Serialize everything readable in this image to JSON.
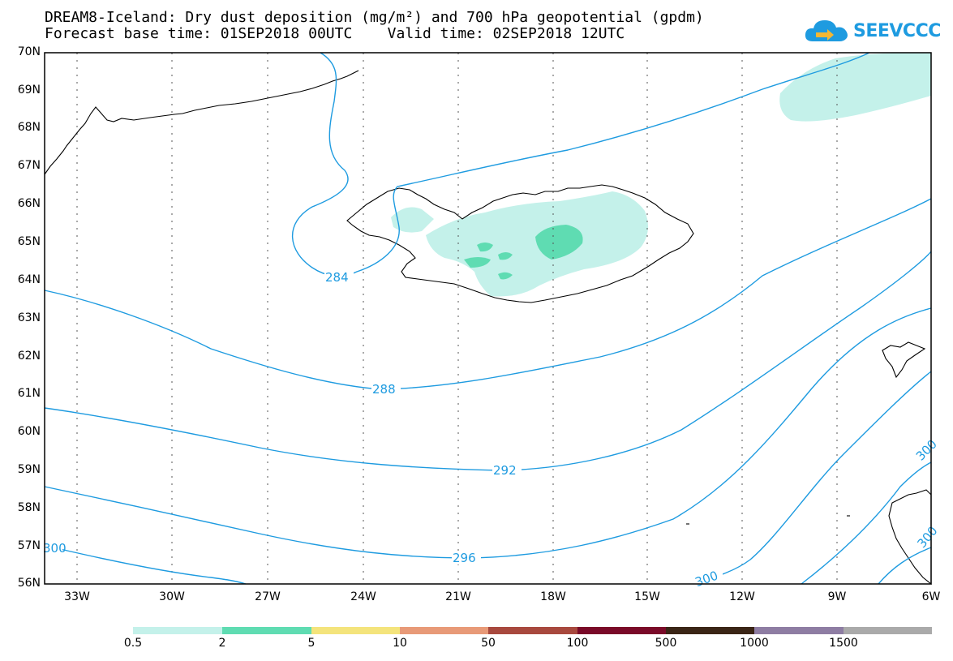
{
  "header": {
    "line1": "DREAM8-Iceland: Dry dust deposition (mg/m²) and 700 hPa geopotential (gpdm)",
    "line2": "Forecast base time: 01SEP2018 00UTC    Valid time: 02SEP2018 12UTC"
  },
  "logo": {
    "text": "SEEVCCC",
    "icon": "cloud-arrow-icon",
    "color": "#1e9be0"
  },
  "map": {
    "lat_labels": [
      "70N",
      "69N",
      "68N",
      "67N",
      "66N",
      "65N",
      "64N",
      "63N",
      "62N",
      "61N",
      "60N",
      "59N",
      "58N",
      "57N",
      "56N"
    ],
    "lon_labels": [
      "33W",
      "30W",
      "27W",
      "24W",
      "21W",
      "18W",
      "15W",
      "12W",
      "9W",
      "6W"
    ],
    "contour_labels": [
      "284",
      "288",
      "292",
      "296",
      "300",
      "300",
      "300",
      "300"
    ],
    "contour_color": "#1e9be0",
    "coast_color": "#000000"
  },
  "legend": {
    "labels": [
      "0.5",
      "2",
      "5",
      "10",
      "50",
      "100",
      "500",
      "1000",
      "1500"
    ],
    "colors": [
      "#c4f1ea",
      "#5fdcb2",
      "#f4e47c",
      "#e89a78",
      "#a8493e",
      "#7a0a29",
      "#3a2516",
      "#8e7da3",
      "#aaaaaa"
    ]
  }
}
